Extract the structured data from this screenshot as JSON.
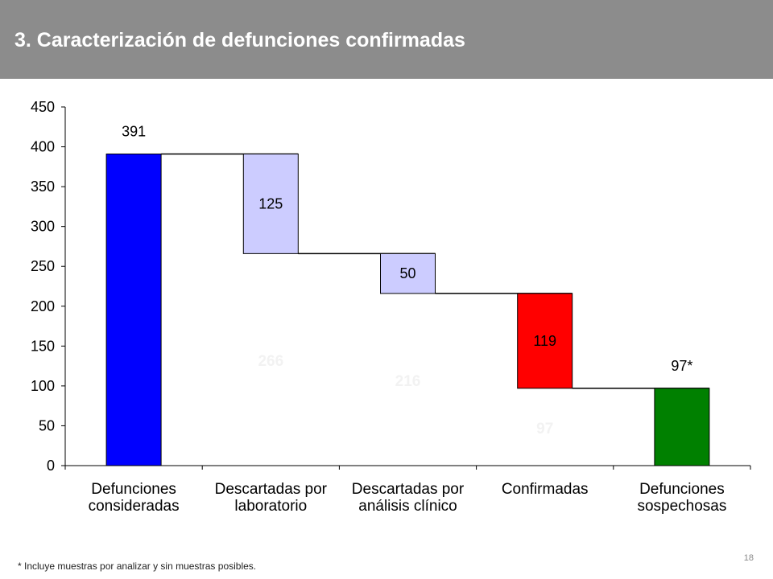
{
  "header": {
    "title": "3. Caracterización de defunciones confirmadas"
  },
  "chart_data": {
    "type": "bar",
    "subtype": "waterfall",
    "categories": [
      [
        "Defunciones",
        "consideradas"
      ],
      [
        "Descartadas por",
        "laboratorio"
      ],
      [
        "Descartadas por",
        "análisis clínico"
      ],
      [
        "Confirmadas"
      ],
      [
        "Defunciones",
        "sospechosas"
      ]
    ],
    "bars": [
      {
        "base": 0,
        "top": 391,
        "value": 391,
        "label": "391",
        "label_position": "above",
        "color": "#0000ff"
      },
      {
        "base": 266,
        "top": 391,
        "value": 125,
        "label": "125",
        "label_position": "inside",
        "color": "#ccccff"
      },
      {
        "base": 216,
        "top": 266,
        "value": 50,
        "label": "50",
        "label_position": "inside",
        "color": "#ccccff"
      },
      {
        "base": 97,
        "top": 216,
        "value": 119,
        "label": "119",
        "label_position": "inside",
        "color": "#ff0000"
      },
      {
        "base": 0,
        "top": 97,
        "value": 97,
        "label": "97*",
        "label_position": "above",
        "color": "#008000"
      }
    ],
    "hidden_labels": [
      {
        "category_index": 1,
        "value": 266,
        "text": "266"
      },
      {
        "category_index": 2,
        "value": 216,
        "text": "216"
      },
      {
        "category_index": 3,
        "value": 97,
        "text": "97"
      }
    ],
    "connector_levels": [
      391,
      266,
      216,
      97
    ],
    "ylim": [
      0,
      450
    ],
    "yticks": [
      0,
      50,
      100,
      150,
      200,
      250,
      300,
      350,
      400,
      450
    ],
    "xlabel": "",
    "ylabel": "",
    "grid": false,
    "legend": "none"
  },
  "footnote": "* Incluye muestras por analizar  y sin muestras posibles.",
  "page_number": "18"
}
